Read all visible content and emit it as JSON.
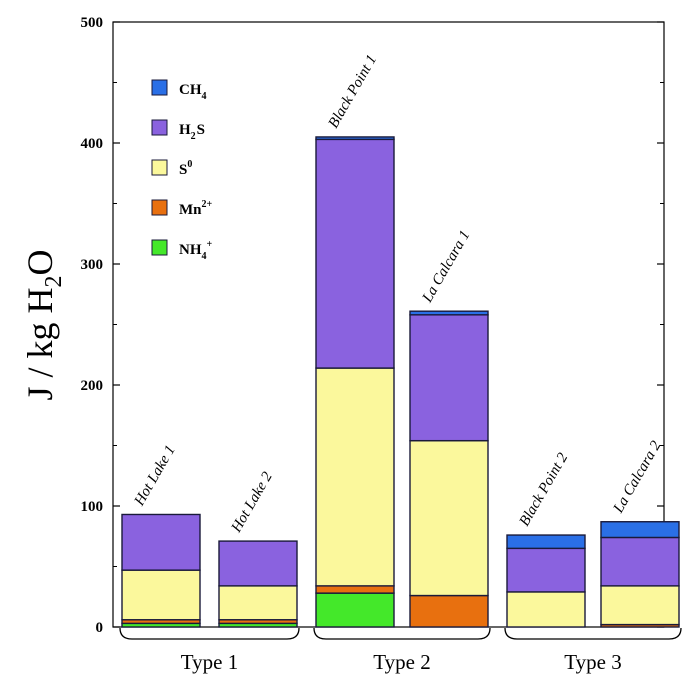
{
  "chart_data": {
    "type": "bar",
    "stacked": true,
    "ylabel": "J / kg H2O",
    "ylim": [
      0,
      500
    ],
    "yticks": [
      "0",
      "100",
      "200",
      "300",
      "400",
      "500"
    ],
    "categories": [
      "Hot Lake 1",
      "Hot Lake 2",
      "Black Point 1",
      "La Calcara 1",
      "Black Point 2",
      "La Calcara 2"
    ],
    "groups": [
      {
        "label": "Type 1",
        "members": [
          0,
          1
        ]
      },
      {
        "label": "Type 2",
        "members": [
          2,
          3
        ]
      },
      {
        "label": "Type 3",
        "members": [
          4,
          5
        ]
      }
    ],
    "series": [
      {
        "name": "NH4+",
        "color": "#44e82a",
        "values": [
          3,
          3,
          28,
          0,
          0,
          0
        ]
      },
      {
        "name": "Mn2+",
        "color": "#e8700f",
        "values": [
          3,
          3,
          6,
          26,
          0,
          2
        ]
      },
      {
        "name": "S0",
        "color": "#fbf89c",
        "values": [
          41,
          28,
          180,
          128,
          29,
          32
        ]
      },
      {
        "name": "H2S",
        "color": "#8a62df",
        "values": [
          46,
          37,
          189,
          104,
          36,
          40
        ]
      },
      {
        "name": "CH4",
        "color": "#2a6fe6",
        "values": [
          0,
          0,
          2,
          3,
          11,
          13
        ]
      }
    ],
    "legend": {
      "position": "top-left",
      "order": [
        4,
        3,
        2,
        1,
        0
      ],
      "entries": [
        {
          "main": "CH",
          "sub": "4",
          "sup": ""
        },
        {
          "main": "H",
          "sub": "2",
          "tail": "S"
        },
        {
          "main": "S",
          "sub": "",
          "sup": "0"
        },
        {
          "main": "Mn",
          "sub": "",
          "sup": "2+"
        },
        {
          "main": "NH",
          "sub": "4",
          "sup": "+"
        }
      ]
    },
    "grid": false
  }
}
